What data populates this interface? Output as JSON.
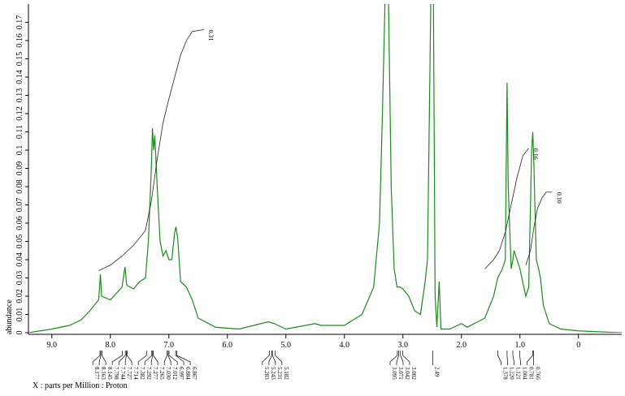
{
  "chart_data": {
    "type": "line",
    "x_label": "X : parts per Million : Proton",
    "y_label": "abundance",
    "xlim": [
      9.4,
      -0.74
    ],
    "ylim": [
      0,
      0.18
    ],
    "xticks": [
      {
        "value": 9,
        "label": "9.0"
      },
      {
        "value": 8,
        "label": "8.0"
      },
      {
        "value": 7,
        "label": "7.0"
      },
      {
        "value": 6,
        "label": "6.0"
      },
      {
        "value": 5,
        "label": "5.0"
      },
      {
        "value": 4,
        "label": "4.0"
      },
      {
        "value": 3,
        "label": "3.0"
      },
      {
        "value": 2,
        "label": "2.0"
      },
      {
        "value": 1,
        "label": "1.0"
      },
      0
    ],
    "yticks": [
      0,
      0.01,
      0.02,
      0.03,
      0.04,
      0.05,
      0.06,
      0.07,
      0.08,
      0.09,
      0.1,
      0.11,
      0.12,
      0.13,
      0.14,
      0.15,
      0.16,
      0.17
    ],
    "series": [
      {
        "name": "Proton",
        "color": "#1a8a1a",
        "x": [
          9.4,
          9.0,
          8.7,
          8.5,
          8.35,
          8.2,
          8.17,
          8.15,
          8.0,
          7.8,
          7.75,
          7.72,
          7.6,
          7.5,
          7.4,
          7.35,
          7.3,
          7.28,
          7.26,
          7.24,
          7.2,
          7.15,
          7.1,
          7.05,
          7.0,
          6.95,
          6.9,
          6.88,
          6.85,
          6.8,
          6.7,
          6.6,
          6.5,
          6.2,
          5.8,
          5.3,
          5.2,
          5.0,
          4.5,
          4.4,
          4.0,
          3.7,
          3.5,
          3.4,
          3.35,
          3.3,
          3.25,
          3.2,
          3.15,
          3.1,
          3.05,
          3.0,
          2.9,
          2.8,
          2.7,
          2.62,
          2.58,
          2.52,
          2.48,
          2.45,
          2.42,
          2.38,
          2.35,
          2.2,
          2.0,
          1.9,
          1.6,
          1.45,
          1.38,
          1.3,
          1.25,
          1.22,
          1.2,
          1.15,
          1.12,
          1.1,
          1.0,
          0.9,
          0.85,
          0.8,
          0.78,
          0.76,
          0.72,
          0.68,
          0.65,
          0.6,
          0.5,
          0.3,
          0.0,
          -0.74
        ],
        "values": [
          0.0,
          0.002,
          0.004,
          0.007,
          0.012,
          0.018,
          0.032,
          0.02,
          0.018,
          0.025,
          0.036,
          0.026,
          0.024,
          0.028,
          0.03,
          0.05,
          0.09,
          0.112,
          0.1,
          0.108,
          0.08,
          0.05,
          0.042,
          0.045,
          0.04,
          0.04,
          0.055,
          0.058,
          0.052,
          0.028,
          0.025,
          0.018,
          0.008,
          0.003,
          0.002,
          0.006,
          0.005,
          0.002,
          0.005,
          0.004,
          0.004,
          0.01,
          0.025,
          0.06,
          0.12,
          0.19,
          0.19,
          0.08,
          0.035,
          0.025,
          0.025,
          0.024,
          0.02,
          0.012,
          0.01,
          0.028,
          0.04,
          0.19,
          0.19,
          0.02,
          0.003,
          0.028,
          0.002,
          0.002,
          0.005,
          0.003,
          0.008,
          0.02,
          0.03,
          0.035,
          0.04,
          0.137,
          0.08,
          0.035,
          0.04,
          0.045,
          0.035,
          0.02,
          0.025,
          0.1,
          0.11,
          0.09,
          0.04,
          0.035,
          0.03,
          0.015,
          0.005,
          0.002,
          0.001,
          0.0
        ]
      }
    ],
    "integrals": [
      {
        "label": "0.31",
        "color": "#222",
        "x": [
          8.2,
          8.0,
          7.8,
          7.6,
          7.4,
          7.3,
          7.2,
          7.1,
          7.0,
          6.9,
          6.8,
          6.7,
          6.6,
          6.4
        ],
        "values": [
          0.034,
          0.037,
          0.042,
          0.048,
          0.056,
          0.072,
          0.095,
          0.115,
          0.128,
          0.14,
          0.152,
          0.16,
          0.165,
          0.166
        ]
      },
      {
        "label": "0.16",
        "color": "#222",
        "x": [
          1.6,
          1.45,
          1.35,
          1.25,
          1.15,
          1.05,
          0.95,
          0.85
        ],
        "values": [
          0.035,
          0.04,
          0.045,
          0.055,
          0.07,
          0.085,
          0.097,
          0.101
        ]
      },
      {
        "label": "0.10",
        "color": "#222",
        "x": [
          0.9,
          0.82,
          0.76,
          0.7,
          0.62,
          0.55,
          0.45
        ],
        "values": [
          0.037,
          0.045,
          0.058,
          0.068,
          0.074,
          0.077,
          0.077
        ]
      }
    ],
    "peak_groups": [
      [
        8.177,
        8.163,
        8.145,
        7.798,
        7.744,
        7.727,
        7.714,
        7.382,
        7.292,
        7.277,
        7.265,
        {
          "value": 7.03,
          "label": "7.030"
        },
        7.012,
        6.997,
        6.884,
        6.867
      ],
      [
        5.283,
        5.243,
        5.231,
        5.182
      ],
      [
        3.095,
        3.071,
        3.042,
        3.002
      ],
      [
        2.49
      ],
      [
        1.378,
        {
          "value": 1.22,
          "label": "1.220"
        },
        1.121,
        1.004,
        0.781,
        0.766
      ]
    ]
  }
}
